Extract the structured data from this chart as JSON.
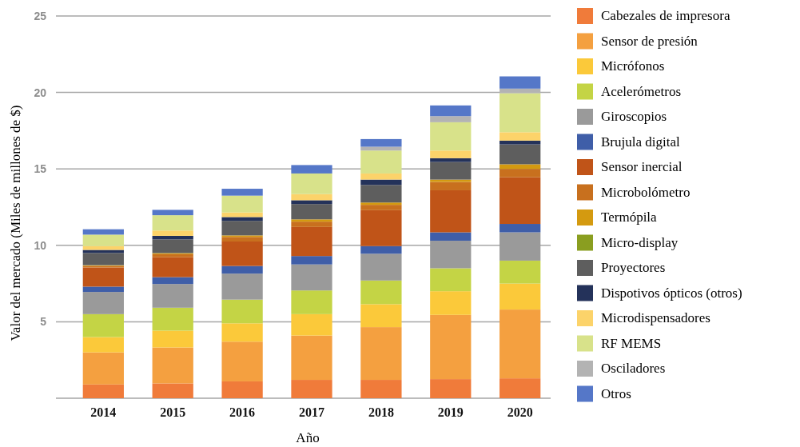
{
  "chart_data": {
    "type": "bar",
    "stacked": true,
    "xlabel": "Año",
    "ylabel": "Valor del mercado (Miles de millones de $)",
    "categories": [
      "2014",
      "2015",
      "2016",
      "2017",
      "2018",
      "2019",
      "2020"
    ],
    "ylim": [
      0,
      25
    ],
    "yticks": [
      {
        "value": 0,
        "label": null
      },
      5,
      10,
      15,
      20,
      25
    ],
    "grid": "y",
    "legend": "right",
    "series": [
      {
        "name": "Cabezales de impresora",
        "color": "#f07b3a",
        "values": [
          0.9,
          0.97,
          1.1,
          1.2,
          1.2,
          1.25,
          1.3
        ]
      },
      {
        "name": "Sensor de presión",
        "color": "#f4a040",
        "values": [
          2.1,
          2.35,
          2.6,
          2.9,
          3.45,
          4.2,
          4.5
        ]
      },
      {
        "name": "Micrófonos",
        "color": "#fbc93a",
        "values": [
          1.0,
          1.1,
          1.2,
          1.4,
          1.5,
          1.55,
          1.7
        ]
      },
      {
        "name": "Acelerómetros",
        "color": "#c4d445",
        "values": [
          1.5,
          1.5,
          1.55,
          1.55,
          1.55,
          1.5,
          1.5
        ]
      },
      {
        "name": "Giroscopios",
        "color": "#9a9a9a",
        "values": [
          1.45,
          1.55,
          1.7,
          1.7,
          1.75,
          1.8,
          1.85
        ]
      },
      {
        "name": "Brujula digital",
        "color": "#3f5ea8",
        "values": [
          0.35,
          0.45,
          0.5,
          0.55,
          0.5,
          0.55,
          0.55
        ]
      },
      {
        "name": "Sensor inercial",
        "color": "#c05418",
        "values": [
          1.25,
          1.3,
          1.6,
          1.9,
          2.35,
          2.75,
          3.05
        ]
      },
      {
        "name": "Microbolómetro",
        "color": "#c8701e",
        "values": [
          0.1,
          0.2,
          0.3,
          0.35,
          0.35,
          0.55,
          0.55
        ]
      },
      {
        "name": "Termópila",
        "color": "#d49a10",
        "values": [
          0.05,
          0.07,
          0.1,
          0.15,
          0.15,
          0.15,
          0.3
        ]
      },
      {
        "name": "Micro-display",
        "color": "#8a9e20",
        "values": [
          0,
          0,
          0,
          0,
          0,
          0,
          0
        ]
      },
      {
        "name": "Proyectores",
        "color": "#5e5e5e",
        "values": [
          0.8,
          0.9,
          0.95,
          1.0,
          1.15,
          1.15,
          1.3
        ]
      },
      {
        "name": "Dispotivos ópticos (otros)",
        "color": "#24325a",
        "values": [
          0.2,
          0.23,
          0.25,
          0.25,
          0.35,
          0.25,
          0.25
        ]
      },
      {
        "name": "Microdispensadores",
        "color": "#fcd36a",
        "values": [
          0.25,
          0.35,
          0.3,
          0.4,
          0.4,
          0.5,
          0.55
        ]
      },
      {
        "name": "RF MEMS",
        "color": "#d8e28a",
        "values": [
          0.75,
          1.0,
          1.1,
          1.35,
          1.5,
          1.85,
          2.55
        ]
      },
      {
        "name": "Osciladores",
        "color": "#b3b3b3",
        "values": [
          0,
          0,
          0,
          0,
          0.25,
          0.4,
          0.3
        ]
      },
      {
        "name": "Otros",
        "color": "#5577c8",
        "values": [
          0.35,
          0.35,
          0.45,
          0.55,
          0.5,
          0.7,
          0.8
        ]
      }
    ]
  }
}
